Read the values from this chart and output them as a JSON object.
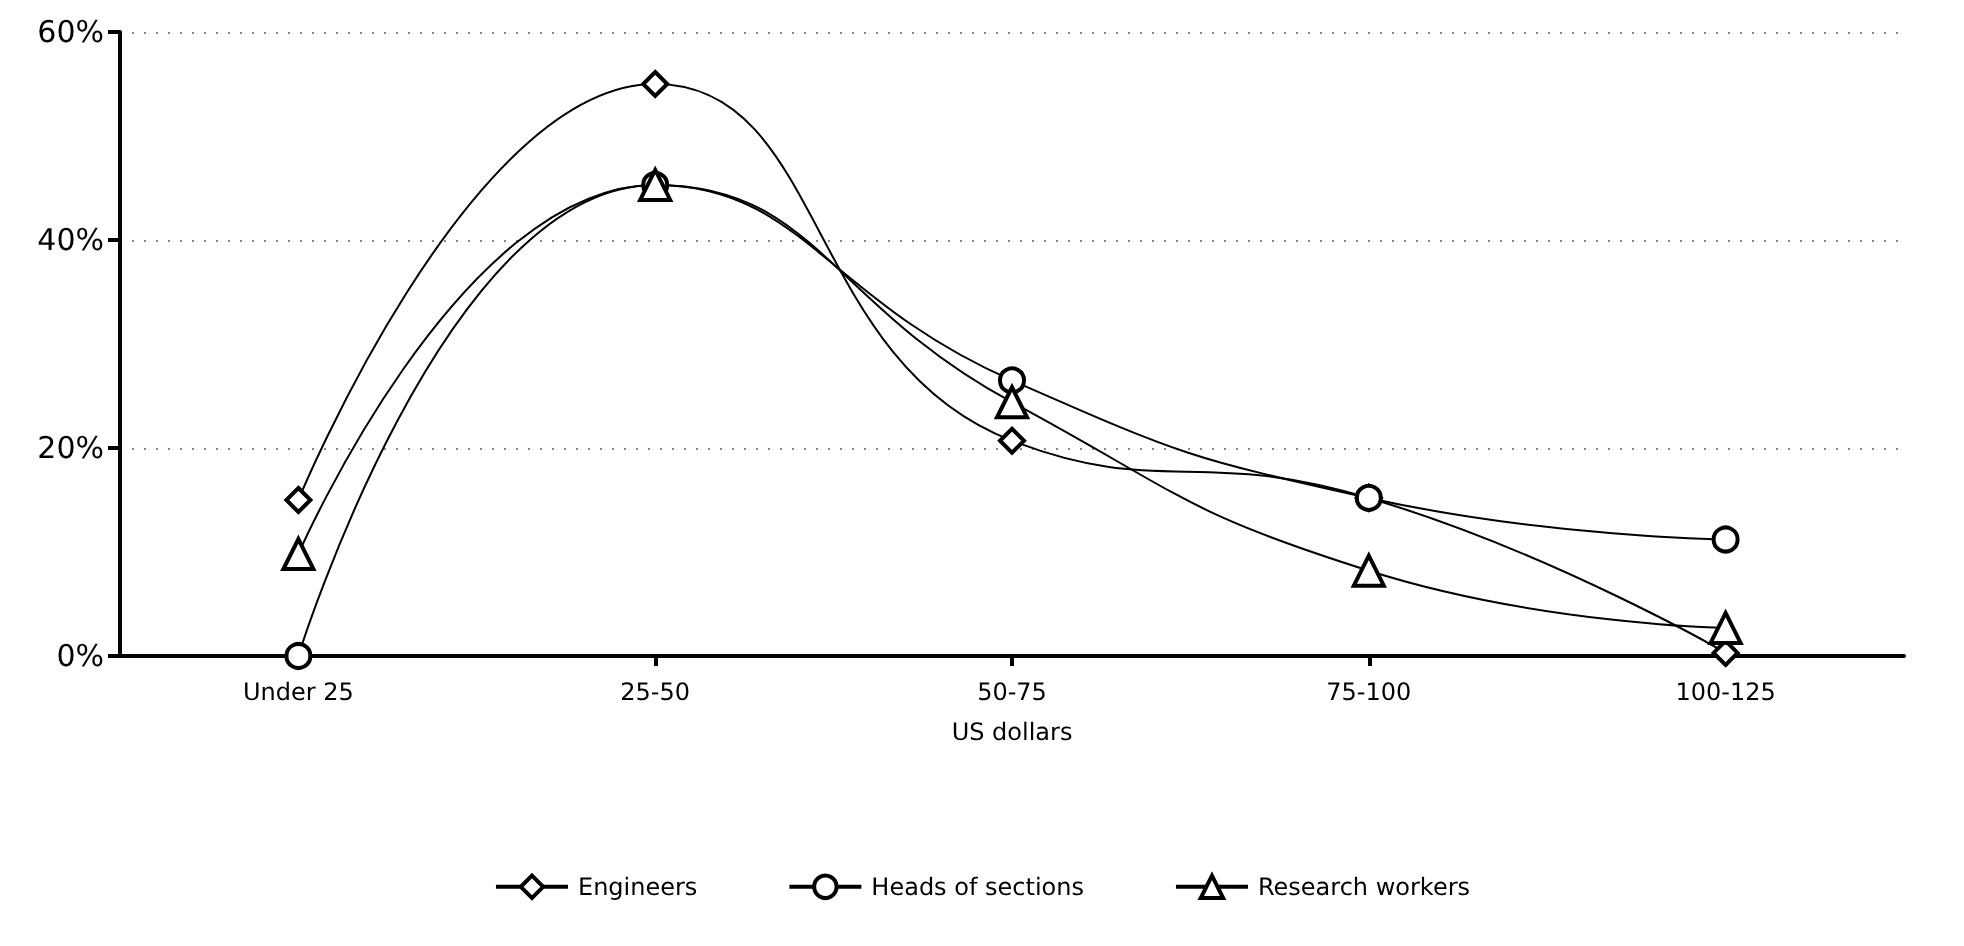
{
  "chart_data": {
    "type": "line",
    "xlabel": "US dollars",
    "categories": [
      "Under 25",
      "25-50",
      "50-75",
      "75-100",
      "100-125"
    ],
    "series": [
      {
        "name": "Engineers",
        "color": "#000000",
        "marker": "diamond",
        "values": [
          15,
          55,
          20.7,
          15.2,
          0.3
        ]
      },
      {
        "name": "Heads of sections",
        "color": "#000000",
        "marker": "circle",
        "values": [
          0,
          45.3,
          26.5,
          15.2,
          11.2
        ]
      },
      {
        "name": "Research workers",
        "color": "#000000",
        "marker": "triangle",
        "values": [
          9.8,
          45.3,
          24.4,
          8.2,
          2.7
        ]
      }
    ],
    "ylim": [
      0,
      60
    ],
    "yticks": [
      {
        "value": 0,
        "label": "0%"
      },
      {
        "value": 20,
        "label": "20%"
      },
      {
        "value": 40,
        "label": "40%"
      },
      {
        "value": 60,
        "label": "60%"
      }
    ],
    "grid": "y",
    "legend": "bottom",
    "line_style": "solid"
  }
}
